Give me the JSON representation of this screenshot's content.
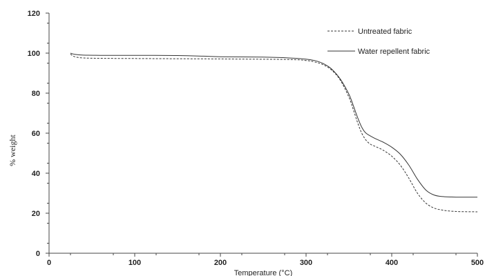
{
  "chart_data": {
    "type": "line",
    "title": "",
    "xlabel": "Temperature (°C)",
    "ylabel": "% weight",
    "xlim": [
      0,
      500
    ],
    "ylim": [
      0,
      120
    ],
    "x_ticks": [
      0,
      100,
      200,
      300,
      400,
      500
    ],
    "y_ticks": [
      0,
      20,
      40,
      60,
      80,
      100,
      120
    ],
    "grid": false,
    "legend_position": "top-right",
    "series": [
      {
        "name": "Untreated fabric",
        "style": "dashed",
        "color": "#333333",
        "points": [
          [
            25,
            99.5
          ],
          [
            30,
            98.2
          ],
          [
            40,
            97.6
          ],
          [
            60,
            97.4
          ],
          [
            100,
            97.3
          ],
          [
            200,
            97.1
          ],
          [
            280,
            96.8
          ],
          [
            300,
            96.3
          ],
          [
            310,
            95.6
          ],
          [
            320,
            94.2
          ],
          [
            330,
            91.5
          ],
          [
            340,
            86.5
          ],
          [
            350,
            78.0
          ],
          [
            355,
            72.0
          ],
          [
            360,
            65.5
          ],
          [
            365,
            60.0
          ],
          [
            370,
            56.5
          ],
          [
            375,
            54.5
          ],
          [
            380,
            53.5
          ],
          [
            390,
            51.5
          ],
          [
            400,
            48.5
          ],
          [
            410,
            44.0
          ],
          [
            420,
            37.5
          ],
          [
            430,
            30.0
          ],
          [
            440,
            25.0
          ],
          [
            450,
            22.5
          ],
          [
            460,
            21.5
          ],
          [
            470,
            21.0
          ],
          [
            480,
            20.8
          ],
          [
            500,
            20.7
          ]
        ]
      },
      {
        "name": "Water repellent fabric",
        "style": "solid",
        "color": "#333333",
        "points": [
          [
            25,
            100.0
          ],
          [
            30,
            99.4
          ],
          [
            40,
            99.0
          ],
          [
            60,
            98.9
          ],
          [
            100,
            98.9
          ],
          [
            150,
            98.8
          ],
          [
            180,
            98.5
          ],
          [
            200,
            98.2
          ],
          [
            250,
            98.0
          ],
          [
            280,
            97.6
          ],
          [
            300,
            97.0
          ],
          [
            310,
            96.3
          ],
          [
            320,
            94.8
          ],
          [
            330,
            92.0
          ],
          [
            340,
            87.0
          ],
          [
            350,
            79.5
          ],
          [
            355,
            74.0
          ],
          [
            360,
            68.0
          ],
          [
            365,
            63.0
          ],
          [
            370,
            60.0
          ],
          [
            380,
            57.5
          ],
          [
            390,
            55.5
          ],
          [
            400,
            53.0
          ],
          [
            410,
            49.5
          ],
          [
            420,
            44.0
          ],
          [
            430,
            37.0
          ],
          [
            440,
            31.5
          ],
          [
            450,
            29.0
          ],
          [
            460,
            28.3
          ],
          [
            470,
            28.1
          ],
          [
            480,
            28.0
          ],
          [
            500,
            28.0
          ]
        ]
      }
    ]
  }
}
